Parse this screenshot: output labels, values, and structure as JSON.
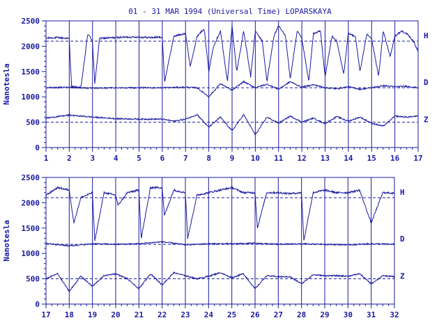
{
  "chart_data": {
    "type": "line",
    "title": "01 - 31 MAR 1994 (Universal Time) LOPARSKAYA",
    "ylabel": "Nanotesla",
    "ylim": [
      0,
      2500
    ],
    "yticks": [
      0,
      500,
      1000,
      1500,
      2000,
      2500
    ],
    "components": [
      "H",
      "D",
      "Z"
    ],
    "baselines": {
      "H": 2100,
      "D": 1180,
      "Z": 500
    },
    "colors": {
      "line": "#1a1aa0",
      "axis": "#1a1aa0",
      "background": "#ffffff"
    },
    "grid": "vertical day lines, dashed baselines",
    "panels": [
      {
        "xlim": [
          1,
          17
        ],
        "xticks": [
          1,
          2,
          3,
          4,
          5,
          6,
          7,
          8,
          9,
          10,
          11,
          12,
          13,
          14,
          15,
          16,
          17
        ],
        "series": [
          {
            "name": "H",
            "x": [
              1,
              1.5,
              2,
              2.1,
              2.5,
              2.8,
              3,
              3.1,
              3.3,
              3.5,
              4,
              4.5,
              5,
              5.5,
              6,
              6.1,
              6.5,
              7,
              7.2,
              7.5,
              7.8,
              8,
              8.2,
              8.5,
              8.8,
              9,
              9.2,
              9.5,
              9.8,
              10,
              10.3,
              10.5,
              10.8,
              11,
              11.3,
              11.5,
              11.8,
              12,
              12.3,
              12.5,
              12.8,
              13,
              13.3,
              13.5,
              13.8,
              14,
              14.3,
              14.5,
              14.8,
              15,
              15.3,
              15.5,
              15.8,
              16,
              16.3,
              16.5,
              16.8,
              17
            ],
            "values": [
              2160,
              2170,
              2150,
              1200,
              1180,
              2250,
              2100,
              1250,
              2150,
              2160,
              2170,
              2180,
              2180,
              2170,
              2180,
              1300,
              2200,
              2250,
              1600,
              2200,
              2350,
              1500,
              2000,
              2300,
              1300,
              2400,
              1500,
              2300,
              1400,
              2300,
              2100,
              1300,
              2200,
              2400,
              2200,
              1350,
              2300,
              2150,
              1300,
              2250,
              2300,
              1400,
              2200,
              2100,
              1450,
              2250,
              2200,
              1500,
              2250,
              2150,
              1400,
              2300,
              1800,
              2200,
              2300,
              2250,
              2100,
              1900
            ]
          },
          {
            "name": "D",
            "x": [
              1,
              2,
              3,
              4,
              5,
              6,
              7,
              7.5,
              8,
              8.5,
              9,
              9.5,
              10,
              10.5,
              11,
              11.5,
              12,
              12.5,
              13,
              13.5,
              14,
              14.5,
              15,
              15.5,
              16,
              16.5,
              17
            ],
            "values": [
              1180,
              1190,
              1170,
              1180,
              1180,
              1180,
              1190,
              1180,
              1000,
              1260,
              1130,
              1300,
              1180,
              1250,
              1150,
              1300,
              1190,
              1240,
              1180,
              1160,
              1200,
              1150,
              1180,
              1220,
              1200,
              1210,
              1180
            ]
          },
          {
            "name": "Z",
            "x": [
              1,
              2,
              3,
              4,
              5,
              6,
              6.5,
              7,
              7.5,
              8,
              8.5,
              9,
              9.5,
              10,
              10.5,
              11,
              11.5,
              12,
              12.5,
              13,
              13.5,
              14,
              14.5,
              15,
              15.5,
              16,
              16.5,
              17
            ],
            "values": [
              580,
              640,
              600,
              570,
              560,
              560,
              520,
              560,
              650,
              400,
              600,
              330,
              650,
              250,
              600,
              480,
              620,
              500,
              580,
              470,
              610,
              520,
              600,
              480,
              420,
              620,
              600,
              620
            ]
          }
        ]
      },
      {
        "xlim": [
          17,
          32
        ],
        "xticks": [
          17,
          18,
          19,
          20,
          21,
          22,
          23,
          24,
          25,
          26,
          27,
          28,
          29,
          30,
          31,
          32
        ],
        "series": [
          {
            "name": "H",
            "x": [
              17,
              17.5,
              18,
              18.2,
              18.5,
              19,
              19.1,
              19.5,
              20,
              20.1,
              20.5,
              21,
              21.1,
              21.5,
              22,
              22.1,
              22.5,
              23,
              23.1,
              23.5,
              24,
              24.5,
              25,
              25.5,
              26,
              26.1,
              26.5,
              27,
              27.5,
              28,
              28.1,
              28.5,
              29,
              29.5,
              30,
              30.5,
              31,
              31.5,
              32
            ],
            "values": [
              2150,
              2300,
              2250,
              1600,
              2100,
              2200,
              1250,
              2200,
              2150,
              1950,
              2200,
              2250,
              1300,
              2300,
              2300,
              1750,
              2250,
              2200,
              1300,
              2150,
              2200,
              2250,
              2300,
              2200,
              2200,
              1500,
              2200,
              2200,
              2180,
              2200,
              1250,
              2200,
              2250,
              2200,
              2200,
              2250,
              1600,
              2200,
              2190
            ]
          },
          {
            "name": "D",
            "x": [
              17,
              18,
              19,
              20,
              21,
              22,
              23,
              24,
              25,
              26,
              27,
              28,
              29,
              30,
              31,
              32
            ],
            "values": [
              1200,
              1150,
              1190,
              1180,
              1190,
              1230,
              1170,
              1190,
              1190,
              1200,
              1180,
              1190,
              1180,
              1170,
              1190,
              1180
            ]
          },
          {
            "name": "Z",
            "x": [
              17,
              17.5,
              18,
              18.5,
              19,
              19.5,
              20,
              20.5,
              21,
              21.5,
              22,
              22.5,
              23,
              23.5,
              24,
              24.5,
              25,
              25.5,
              26,
              26.5,
              27,
              27.5,
              28,
              28.5,
              29,
              29.5,
              30,
              30.5,
              31,
              31.5,
              32
            ],
            "values": [
              500,
              600,
              250,
              550,
              350,
              560,
              600,
              500,
              300,
              600,
              380,
              620,
              560,
              500,
              550,
              620,
              520,
              600,
              300,
              560,
              540,
              540,
              400,
              580,
              560,
              560,
              550,
              600,
              400,
              560,
              540
            ]
          }
        ]
      }
    ]
  }
}
